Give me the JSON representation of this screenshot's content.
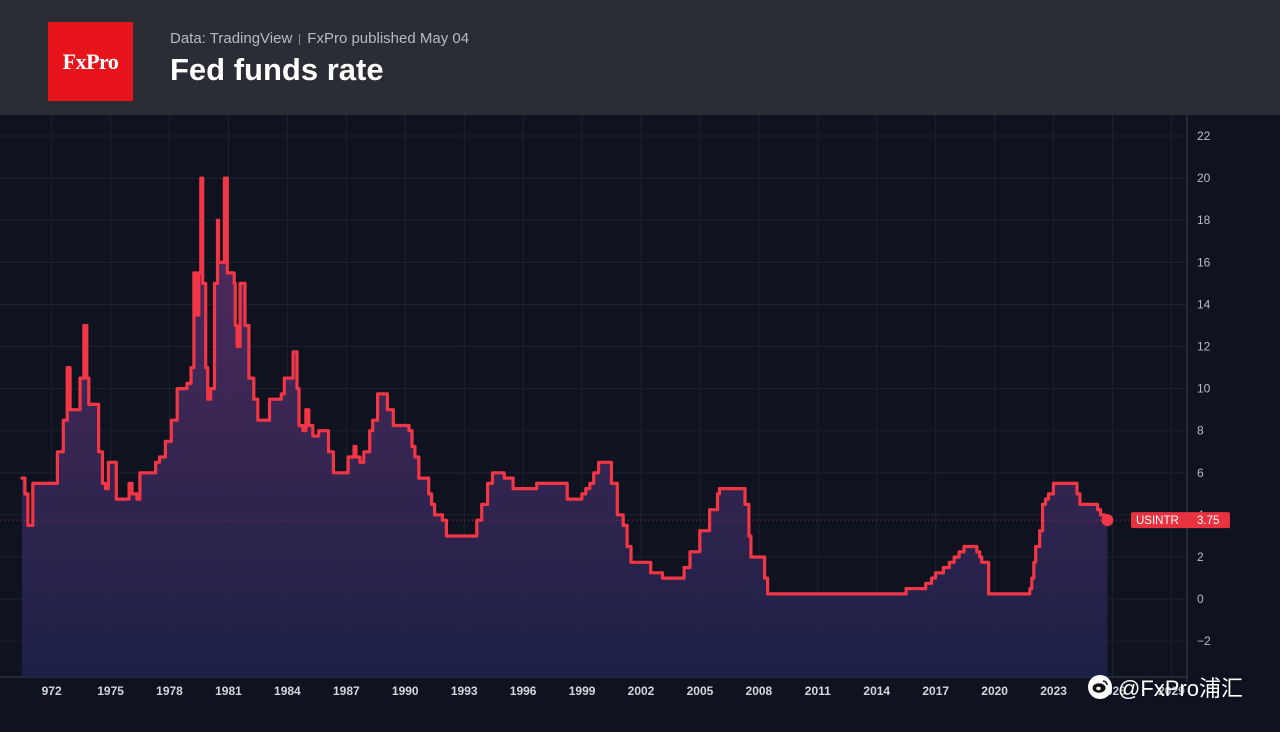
{
  "header": {
    "logo_text": "FxPro",
    "source": "Data: TradingView",
    "published": "FxPro published May 04",
    "title": "Fed funds rate"
  },
  "watermark": {
    "text": "@FxPro浦汇",
    "icon": "weibo-icon"
  },
  "colors": {
    "line": "#f23645",
    "fill_top": "#5a2d63",
    "fill_bottom": "#1c2148",
    "background": "#0f1320",
    "header_bg": "#2b2d35",
    "logo_bg": "#e8141b",
    "grid": "#1c2230"
  },
  "chart_data": {
    "type": "area",
    "title": "Fed funds rate",
    "series": [
      {
        "name": "USINTR",
        "last_value_label": "3.75",
        "points": [
          [
            1971.0,
            5.75
          ],
          [
            1971.15,
            5.0
          ],
          [
            1971.3,
            3.5
          ],
          [
            1971.45,
            3.5
          ],
          [
            1971.55,
            5.5
          ],
          [
            1972.5,
            5.5
          ],
          [
            1972.8,
            7.0
          ],
          [
            1973.1,
            8.5
          ],
          [
            1973.3,
            11.0
          ],
          [
            1973.45,
            9.0
          ],
          [
            1973.8,
            9.0
          ],
          [
            1973.95,
            10.5
          ],
          [
            1974.15,
            13.0
          ],
          [
            1974.3,
            10.5
          ],
          [
            1974.4,
            9.25
          ],
          [
            1974.7,
            9.25
          ],
          [
            1974.9,
            7.0
          ],
          [
            1975.1,
            5.5
          ],
          [
            1975.25,
            5.25
          ],
          [
            1975.4,
            6.5
          ],
          [
            1975.7,
            6.5
          ],
          [
            1975.8,
            4.75
          ],
          [
            1976.3,
            4.75
          ],
          [
            1976.45,
            5.5
          ],
          [
            1976.6,
            5.0
          ],
          [
            1976.85,
            4.75
          ],
          [
            1977.0,
            6.0
          ],
          [
            1977.6,
            6.0
          ],
          [
            1977.8,
            6.5
          ],
          [
            1978.0,
            6.75
          ],
          [
            1978.3,
            7.5
          ],
          [
            1978.6,
            8.5
          ],
          [
            1978.9,
            10.0
          ],
          [
            1979.1,
            10.0
          ],
          [
            1979.4,
            10.25
          ],
          [
            1979.6,
            11.0
          ],
          [
            1979.75,
            15.5
          ],
          [
            1979.85,
            13.5
          ],
          [
            1980.0,
            15.5
          ],
          [
            1980.1,
            20.0
          ],
          [
            1980.2,
            15.0
          ],
          [
            1980.35,
            11.0
          ],
          [
            1980.45,
            9.5
          ],
          [
            1980.6,
            10.0
          ],
          [
            1980.8,
            15.0
          ],
          [
            1980.95,
            18.0
          ],
          [
            1981.0,
            16.0
          ],
          [
            1981.15,
            16.0
          ],
          [
            1981.3,
            20.0
          ],
          [
            1981.45,
            15.5
          ],
          [
            1981.55,
            15.5
          ],
          [
            1981.6,
            15.5
          ],
          [
            1981.8,
            15.0
          ],
          [
            1981.85,
            13.0
          ],
          [
            1981.95,
            12.0
          ],
          [
            1982.1,
            15.0
          ],
          [
            1982.25,
            15.0
          ],
          [
            1982.35,
            13.0
          ],
          [
            1982.45,
            13.0
          ],
          [
            1982.55,
            10.5
          ],
          [
            1982.8,
            9.5
          ],
          [
            1983.0,
            8.5
          ],
          [
            1983.4,
            8.5
          ],
          [
            1983.6,
            9.5
          ],
          [
            1984.0,
            9.5
          ],
          [
            1984.2,
            9.75
          ],
          [
            1984.35,
            10.5
          ],
          [
            1984.6,
            10.5
          ],
          [
            1984.8,
            11.75
          ],
          [
            1985.0,
            10.0
          ],
          [
            1985.1,
            8.25
          ],
          [
            1985.3,
            8.0
          ],
          [
            1985.45,
            9.0
          ],
          [
            1985.6,
            8.25
          ],
          [
            1985.8,
            7.75
          ],
          [
            1986.0,
            7.75
          ],
          [
            1986.1,
            8.0
          ],
          [
            1986.4,
            8.0
          ],
          [
            1986.6,
            7.0
          ],
          [
            1986.85,
            6.0
          ],
          [
            1987.0,
            6.0
          ],
          [
            1987.35,
            6.0
          ],
          [
            1987.6,
            6.75
          ],
          [
            1987.8,
            6.75
          ],
          [
            1987.9,
            7.25
          ],
          [
            1988.0,
            6.75
          ],
          [
            1988.2,
            6.5
          ],
          [
            1988.4,
            7.0
          ],
          [
            1988.7,
            8.0
          ],
          [
            1988.85,
            8.5
          ],
          [
            1989.1,
            9.75
          ],
          [
            1989.4,
            9.75
          ],
          [
            1989.6,
            9.0
          ],
          [
            1989.9,
            8.25
          ],
          [
            1990.4,
            8.25
          ],
          [
            1990.7,
            8.0
          ],
          [
            1990.85,
            7.25
          ],
          [
            1991.0,
            6.75
          ],
          [
            1991.2,
            5.75
          ],
          [
            1991.55,
            5.75
          ],
          [
            1991.7,
            5.0
          ],
          [
            1991.85,
            4.5
          ],
          [
            1992.0,
            4.0
          ],
          [
            1992.4,
            3.75
          ],
          [
            1992.6,
            3.0
          ],
          [
            1993.0,
            3.0
          ],
          [
            1994.0,
            3.0
          ],
          [
            1994.15,
            3.75
          ],
          [
            1994.4,
            4.5
          ],
          [
            1994.7,
            5.5
          ],
          [
            1994.95,
            6.0
          ],
          [
            1995.3,
            6.0
          ],
          [
            1995.55,
            5.75
          ],
          [
            1995.9,
            5.75
          ],
          [
            1996.0,
            5.25
          ],
          [
            1997.1,
            5.25
          ],
          [
            1997.2,
            5.5
          ],
          [
            1998.5,
            5.5
          ],
          [
            1998.75,
            4.75
          ],
          [
            1999.3,
            4.75
          ],
          [
            1999.5,
            5.0
          ],
          [
            1999.7,
            5.25
          ],
          [
            1999.9,
            5.5
          ],
          [
            2000.1,
            6.0
          ],
          [
            2000.35,
            6.5
          ],
          [
            2000.9,
            6.5
          ],
          [
            2001.0,
            5.5
          ],
          [
            2001.3,
            4.0
          ],
          [
            2001.6,
            3.5
          ],
          [
            2001.8,
            2.5
          ],
          [
            2002.0,
            1.75
          ],
          [
            2002.9,
            1.75
          ],
          [
            2003.0,
            1.25
          ],
          [
            2003.5,
            1.25
          ],
          [
            2003.6,
            1.0
          ],
          [
            2004.5,
            1.0
          ],
          [
            2004.7,
            1.5
          ],
          [
            2005.0,
            2.25
          ],
          [
            2005.5,
            3.25
          ],
          [
            2006.0,
            4.25
          ],
          [
            2006.4,
            5.0
          ],
          [
            2006.5,
            5.25
          ],
          [
            2007.6,
            5.25
          ],
          [
            2007.8,
            4.5
          ],
          [
            2008.0,
            3.0
          ],
          [
            2008.1,
            2.0
          ],
          [
            2008.5,
            2.0
          ],
          [
            2008.8,
            1.0
          ],
          [
            2008.95,
            0.25
          ],
          [
            2015.9,
            0.25
          ],
          [
            2016.0,
            0.5
          ],
          [
            2016.9,
            0.5
          ],
          [
            2017.0,
            0.75
          ],
          [
            2017.3,
            1.0
          ],
          [
            2017.5,
            1.25
          ],
          [
            2017.9,
            1.5
          ],
          [
            2018.2,
            1.75
          ],
          [
            2018.45,
            2.0
          ],
          [
            2018.7,
            2.25
          ],
          [
            2018.95,
            2.5
          ],
          [
            2019.5,
            2.5
          ],
          [
            2019.6,
            2.25
          ],
          [
            2019.75,
            2.0
          ],
          [
            2019.85,
            1.75
          ],
          [
            2020.15,
            1.75
          ],
          [
            2020.2,
            0.25
          ],
          [
            2022.15,
            0.25
          ],
          [
            2022.3,
            0.5
          ],
          [
            2022.4,
            1.0
          ],
          [
            2022.5,
            1.75
          ],
          [
            2022.6,
            2.5
          ],
          [
            2022.8,
            3.25
          ],
          [
            2022.95,
            4.5
          ],
          [
            2023.1,
            4.75
          ],
          [
            2023.25,
            5.0
          ],
          [
            2023.5,
            5.5
          ],
          [
            2024.6,
            5.5
          ],
          [
            2024.7,
            5.0
          ],
          [
            2024.85,
            4.5
          ],
          [
            2025.6,
            4.5
          ],
          [
            2025.75,
            4.25
          ],
          [
            2025.9,
            4.0
          ],
          [
            2026.1,
            3.75
          ],
          [
            2026.25,
            3.75
          ]
        ]
      }
    ],
    "x_ticks": [
      "972",
      "1975",
      "1978",
      "1981",
      "1984",
      "1987",
      "1990",
      "1993",
      "1996",
      "1999",
      "2002",
      "2005",
      "2008",
      "2011",
      "2014",
      "2017",
      "2020",
      "2023",
      "2026",
      "2029"
    ],
    "x_tick_values": [
      1972,
      1975,
      1978,
      1981,
      1984,
      1987,
      1990,
      1993,
      1996,
      1999,
      2002,
      2005,
      2008,
      2011,
      2014,
      2017,
      2020,
      2023,
      2026,
      2029
    ],
    "y_ticks": [
      22,
      20,
      18,
      16,
      14,
      12,
      10,
      8,
      6,
      4,
      2,
      0,
      -2
    ],
    "y_tick_labels": [
      "22",
      "20",
      "18",
      "16",
      "14",
      "12",
      "10",
      "8",
      "6",
      "4",
      "2",
      "0",
      "−2"
    ],
    "xlim": [
      1971.0,
      2030.3
    ],
    "ylim": [
      -3.7,
      23.0
    ],
    "price_line_value": 3.75,
    "grid": true,
    "legend": "none"
  }
}
